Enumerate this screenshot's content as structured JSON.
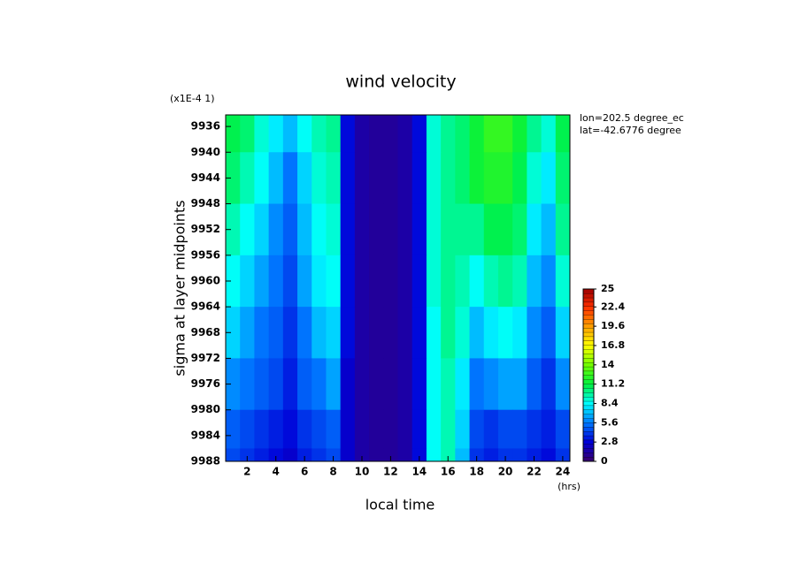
{
  "chart_data": {
    "type": "contour",
    "title": "wind velocity",
    "scale_note": "(x1E-4 1)",
    "x_label": "local time",
    "x_unit": "(hrs)",
    "y_label": "sigma at layer midpoints",
    "annotations": [
      "lon=202.5 degree_ec",
      "lat=-42.6776 degree"
    ],
    "x": [
      1,
      2,
      3,
      4,
      5,
      6,
      7,
      8,
      9,
      10,
      11,
      12,
      13,
      14,
      15,
      16,
      17,
      18,
      19,
      20,
      21,
      22,
      23,
      24
    ],
    "y": [
      9936,
      9944,
      9952,
      9960,
      9968,
      9976,
      9984,
      9988
    ],
    "z": [
      [
        11,
        10.5,
        9,
        8,
        7,
        8.5,
        9.5,
        10,
        3,
        1.5,
        1.2,
        1.2,
        1.5,
        3,
        9,
        10,
        10.5,
        11.5,
        12.5,
        12.5,
        11.5,
        10,
        9,
        11
      ],
      [
        10.5,
        9.5,
        8.5,
        7,
        5.5,
        7.5,
        9,
        9.5,
        3,
        1.5,
        1.2,
        1.2,
        1.5,
        3,
        9,
        10,
        10.5,
        11.5,
        12,
        12,
        11,
        9,
        8,
        10.5
      ],
      [
        9.5,
        8.5,
        7.5,
        6,
        5,
        7,
        8.5,
        9,
        3,
        1.5,
        1.2,
        1.2,
        1.5,
        3,
        9,
        10,
        10,
        10,
        11,
        11,
        10.5,
        8,
        7,
        10
      ],
      [
        8.5,
        7.5,
        6.5,
        5.5,
        4.5,
        6.5,
        8,
        8.5,
        3,
        1.5,
        1.2,
        1.2,
        1.5,
        3,
        9,
        10,
        9.5,
        8.5,
        9.5,
        10,
        9.5,
        7,
        6,
        9
      ],
      [
        7.5,
        6.5,
        5.5,
        5,
        4,
        5.5,
        7,
        7.5,
        3,
        1.5,
        1.2,
        1.2,
        1.5,
        3,
        8.5,
        10,
        9,
        7,
        8,
        8.5,
        8,
        6,
        5,
        7.5
      ],
      [
        6,
        5.5,
        5,
        4.5,
        3.5,
        5,
        5.5,
        6.5,
        2.5,
        1.5,
        1.2,
        1.2,
        1.5,
        3,
        8.5,
        9.5,
        8,
        5.5,
        6,
        6.5,
        6.5,
        5,
        4,
        6
      ],
      [
        5,
        4.5,
        4,
        3.5,
        3,
        4,
        4.5,
        5,
        2.5,
        1.5,
        1.2,
        1.2,
        1.5,
        3,
        8.5,
        9.5,
        7.5,
        4.5,
        4,
        4.5,
        4.5,
        4,
        3.5,
        4.5
      ],
      [
        4.5,
        4,
        3.5,
        3,
        2.5,
        3.5,
        4,
        4.5,
        2.5,
        1.5,
        1.2,
        1.2,
        1.5,
        3,
        8.5,
        9.5,
        7,
        4,
        3.5,
        4,
        4,
        3.5,
        3,
        4
      ]
    ],
    "xlim": [
      0.5,
      24.5
    ],
    "xticks": [
      2,
      4,
      6,
      8,
      10,
      12,
      14,
      16,
      18,
      20,
      22,
      24
    ],
    "ylim": [
      9934.2,
      9988
    ],
    "y_inverted": true,
    "yticks": [
      9936,
      9940,
      9944,
      9948,
      9952,
      9956,
      9960,
      9964,
      9968,
      9972,
      9976,
      9980,
      9984,
      9988
    ],
    "colorbar_ticks": [
      0,
      2.8,
      5.6,
      8.4,
      11.2,
      14,
      16.8,
      19.6,
      22.4,
      25
    ],
    "colormap": [
      "#3c006c",
      "#0000d8",
      "#0078ff",
      "#00ffff",
      "#00f040",
      "#70ff00",
      "#ffff00",
      "#ffa000",
      "#ff3000",
      "#a00000"
    ]
  }
}
